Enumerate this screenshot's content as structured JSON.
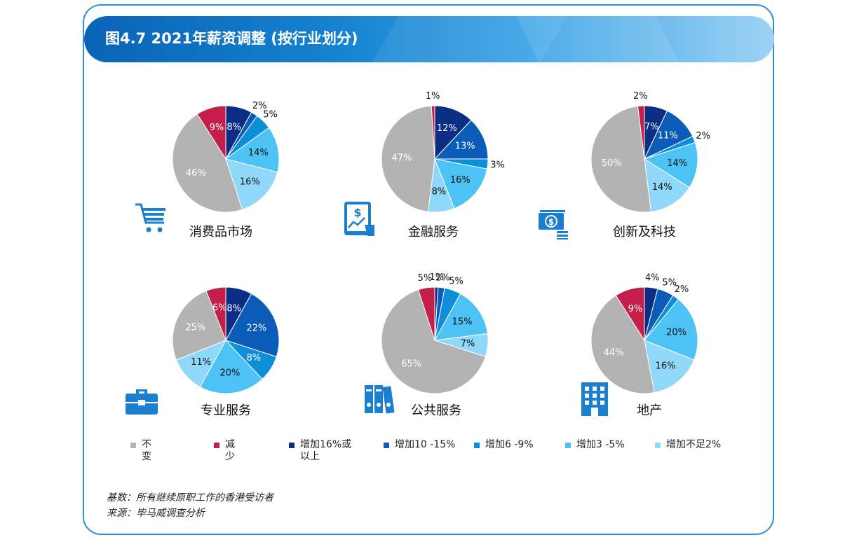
{
  "title": "图4.7 2021年薪资调整 (按行业划分)",
  "colors": {
    "frame": "#2a8fd8",
    "series": [
      "#b3b3b3",
      "#c41e4a",
      "#0b2d84",
      "#0b5cb8",
      "#0f8ed8",
      "#4cc2f5",
      "#90d8fa"
    ]
  },
  "chart_data": [
    {
      "type": "pie",
      "category": "消费品市场",
      "icon": "shopping-cart-icon",
      "values": [
        46,
        9,
        8,
        2,
        5,
        14,
        16
      ],
      "labels": [
        "46%",
        "9%",
        "8%",
        "2%",
        "5%",
        "14%",
        "16%"
      ]
    },
    {
      "type": "pie",
      "category": "金融服务",
      "icon": "financial-tablet-icon",
      "values": [
        47,
        1,
        12,
        13,
        3,
        16,
        8
      ],
      "labels": [
        "47%",
        "1%",
        "12%",
        "13%",
        "3%",
        "16%",
        "8%"
      ]
    },
    {
      "type": "pie",
      "category": "创新及科技",
      "icon": "money-stack-icon",
      "values": [
        50,
        2,
        7,
        11,
        2,
        14,
        14
      ],
      "labels": [
        "50%",
        "2%",
        "7%",
        "11%",
        "2%",
        "14%",
        "14%"
      ]
    },
    {
      "type": "pie",
      "category": "专业服务",
      "icon": "briefcase-icon",
      "values": [
        25,
        6,
        8,
        22,
        8,
        20,
        11
      ],
      "labels": [
        "25%",
        "6%",
        "8%",
        "22%",
        "8%",
        "20%",
        "11%"
      ]
    },
    {
      "type": "pie",
      "category": "公共服务",
      "icon": "binders-icon",
      "values": [
        65,
        5,
        1,
        2,
        5,
        15,
        7
      ],
      "labels": [
        "65%",
        "5%",
        "1%",
        "2%",
        "5%",
        "15%",
        "7%"
      ]
    },
    {
      "type": "pie",
      "category": "地产",
      "icon": "building-icon",
      "values": [
        44,
        9,
        4,
        5,
        2,
        20,
        16
      ],
      "labels": [
        "44%",
        "9%",
        "4%",
        "5%",
        "2%",
        "20%",
        "16%"
      ]
    }
  ],
  "legend": [
    "不变",
    "减少",
    "增加16%或以上",
    "增加10 -15%",
    "增加6 -9%",
    "增加3 -5%",
    "增加不足2%"
  ],
  "notes": {
    "base": "基数：所有继续原职工作的香港受访者",
    "source": "来源：毕马威调查分析"
  }
}
